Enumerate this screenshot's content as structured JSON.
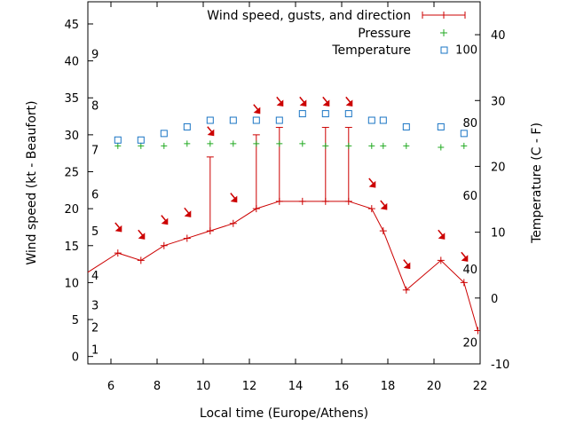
{
  "chart_data": {
    "type": "line",
    "xlabel": "Local time (Europe/Athens)",
    "ylabel_left": "Wind speed (kt - Beaufort)",
    "ylabel_right": "Temperature (C - F)",
    "xlim": [
      5,
      22
    ],
    "ylim_left": [
      -1,
      48
    ],
    "ylim_right": [
      -10,
      45
    ],
    "x_ticks": [
      6,
      8,
      10,
      12,
      14,
      16,
      18,
      20,
      22
    ],
    "y_left_ticks": [
      0,
      5,
      10,
      15,
      20,
      25,
      30,
      35,
      40,
      45
    ],
    "y_right_ticks": [
      -10,
      0,
      10,
      20,
      30,
      40
    ],
    "beaufort_labels": [
      {
        "label": "1",
        "kt": 1
      },
      {
        "label": "2",
        "kt": 4
      },
      {
        "label": "3",
        "kt": 7
      },
      {
        "label": "4",
        "kt": 11
      },
      {
        "label": "5",
        "kt": 17
      },
      {
        "label": "6",
        "kt": 22
      },
      {
        "label": "7",
        "kt": 28
      },
      {
        "label": "8",
        "kt": 34
      },
      {
        "label": "9",
        "kt": 41
      }
    ],
    "fahrenheit_labels": [
      {
        "label": "20",
        "c": -6.7
      },
      {
        "label": "40",
        "c": 4.4
      },
      {
        "label": "60",
        "c": 15.6
      },
      {
        "label": "80",
        "c": 26.7
      },
      {
        "label": "100",
        "c": 37.8
      }
    ],
    "legend": [
      "Wind speed, gusts, and direction",
      "Pressure",
      "Temperature"
    ],
    "colors": {
      "wind": "#cc0000",
      "pressure": "#22aa22",
      "temperature": "#1a75c4"
    },
    "series": [
      {
        "name": "Wind speed, gusts, and direction",
        "x": [
          4.8,
          6.3,
          7.3,
          8.3,
          9.3,
          10.3,
          11.3,
          12.3,
          13.3,
          14.3,
          15.3,
          16.3,
          17.3,
          17.8,
          18.8,
          20.3,
          21.3,
          21.9
        ],
        "values": [
          11,
          14,
          13,
          15,
          16,
          17,
          18,
          20,
          21,
          21,
          21,
          21,
          20,
          17,
          9,
          13,
          10,
          3.5
        ]
      },
      {
        "name": "gusts",
        "x": [
          10.3,
          12.3,
          13.3,
          15.3,
          16.3
        ],
        "values": [
          27,
          30,
          31,
          31,
          31
        ]
      },
      {
        "name": "direction",
        "x": [
          6.3,
          7.3,
          8.3,
          9.3,
          10.3,
          11.3,
          12.3,
          13.3,
          14.3,
          15.3,
          16.3,
          17.3,
          17.8,
          18.8,
          20.3,
          21.3
        ],
        "values": [
          17.5,
          16.5,
          18.5,
          19.5,
          30.5,
          21.5,
          33.5,
          34.5,
          34.5,
          34.5,
          34.5,
          23.5,
          20.5,
          12.5,
          16.5,
          13.5
        ]
      },
      {
        "name": "Pressure",
        "x": [
          6.3,
          7.3,
          8.3,
          9.3,
          10.3,
          11.3,
          12.3,
          13.3,
          14.3,
          15.3,
          16.3,
          17.3,
          17.8,
          18.8,
          20.3,
          21.3
        ],
        "values": [
          28.5,
          28.5,
          28.5,
          28.8,
          28.8,
          28.8,
          28.8,
          28.8,
          28.8,
          28.5,
          28.5,
          28.5,
          28.5,
          28.5,
          28.3,
          28.5
        ]
      },
      {
        "name": "Temperature",
        "x": [
          6.3,
          7.3,
          8.3,
          9.3,
          10.3,
          11.3,
          12.3,
          13.3,
          14.3,
          15.3,
          16.3,
          17.3,
          17.8,
          18.8,
          20.3,
          21.3
        ],
        "values": [
          24,
          24,
          25,
          26,
          27,
          27,
          27,
          27,
          28,
          28,
          28,
          27,
          27,
          26,
          26,
          25
        ]
      }
    ]
  }
}
